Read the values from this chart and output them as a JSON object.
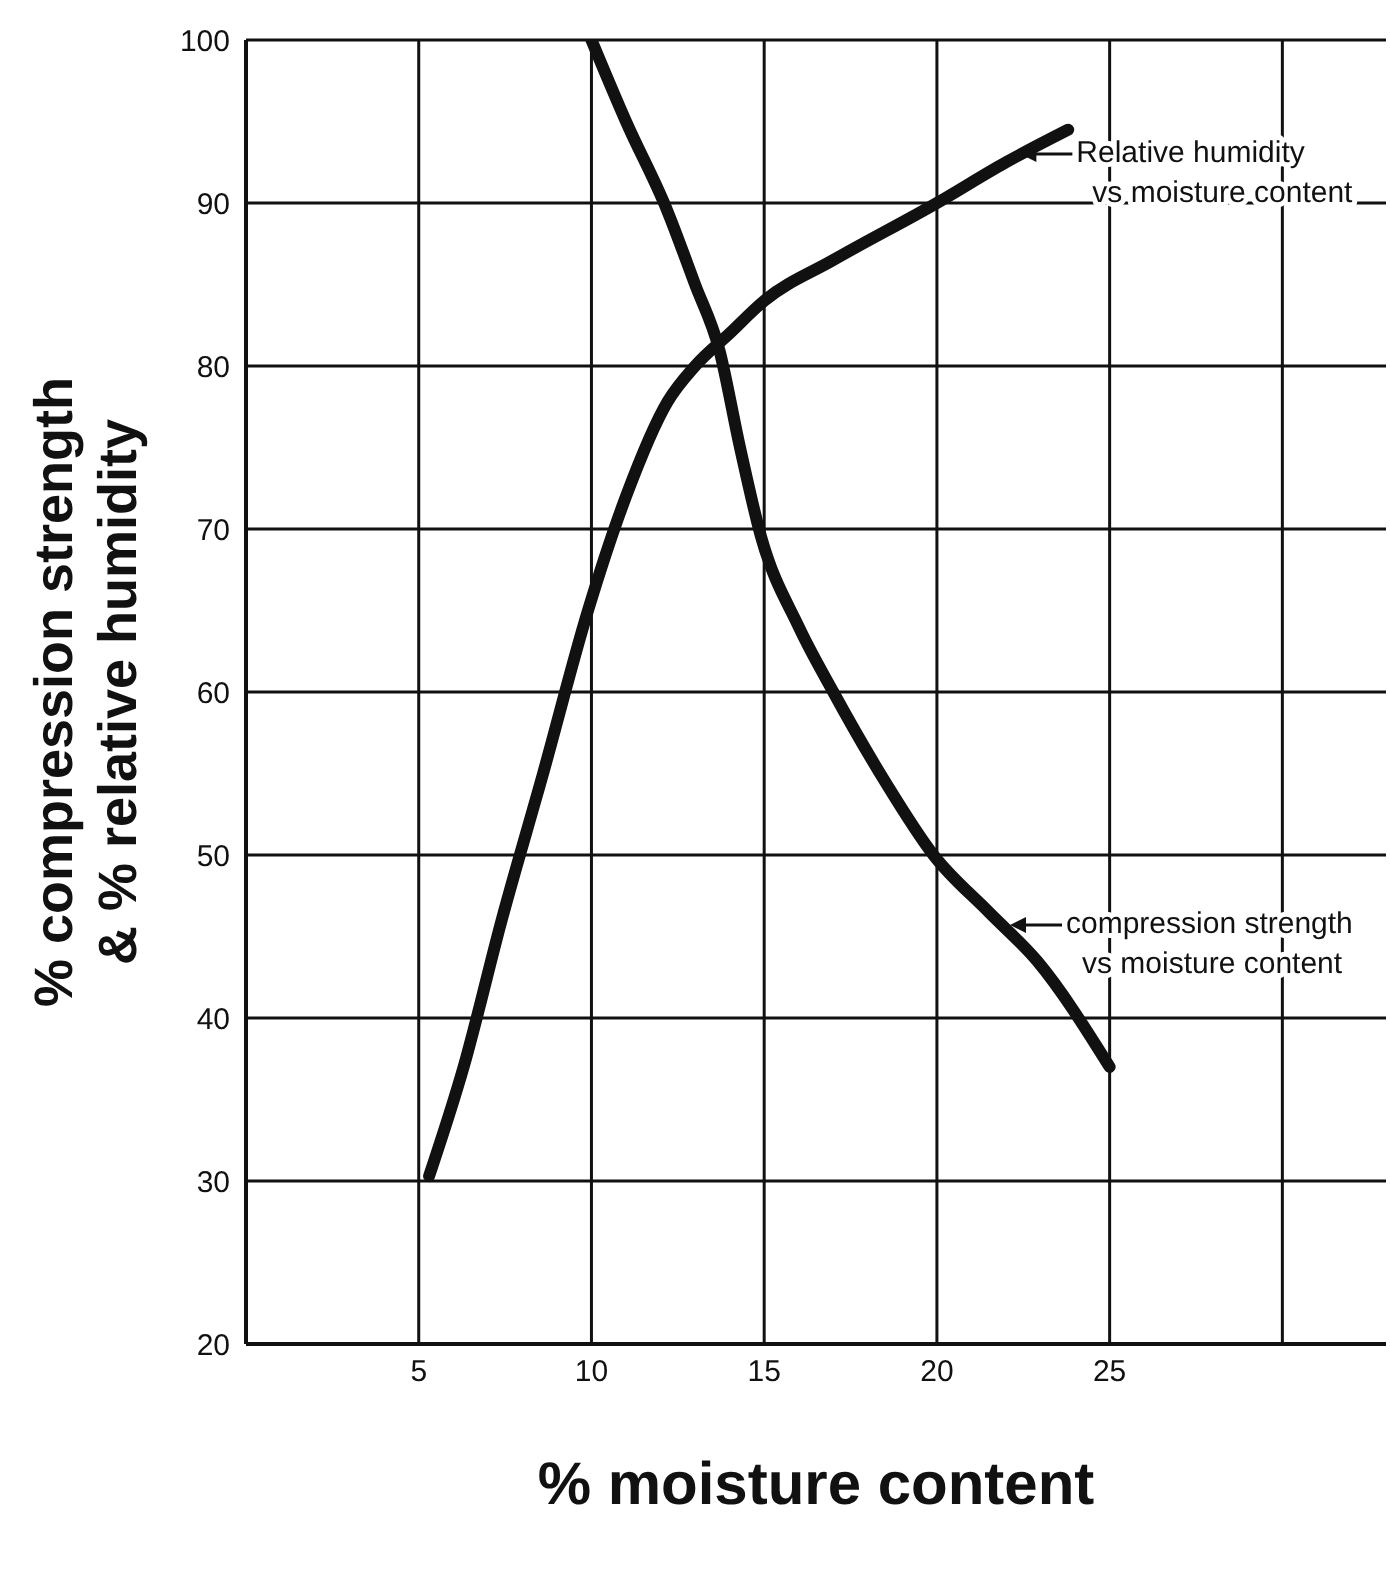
{
  "chart_data": {
    "type": "line",
    "xlabel": "% moisture content",
    "ylabel": "% compression strength\n& % relative humidity",
    "xlim": [
      0,
      33
    ],
    "xticks": [
      5,
      10,
      15,
      20,
      25,
      {
        "value": 30,
        "label": null
      }
    ],
    "ylim": [
      20,
      100
    ],
    "yticks": [
      20,
      30,
      40,
      50,
      60,
      70,
      80,
      90,
      100
    ],
    "grid": true,
    "legend": false,
    "marker": "none",
    "line_style": "solid",
    "series": [
      {
        "color": "#111111",
        "x": [
          5.3,
          6.3,
          7.4,
          8.6,
          9.9,
          11,
          12.2,
          13,
          14,
          15,
          17,
          20,
          22,
          23.8
        ],
        "values": [
          30.3,
          37,
          46,
          55,
          65,
          72,
          77.8,
          80,
          82,
          84,
          86.5,
          90,
          92.5,
          94.5
        ]
      },
      {
        "color": "#111111",
        "x": [
          10,
          11,
          12.2,
          13,
          13.7,
          14.3,
          14.9,
          16,
          17,
          18.5,
          19.9,
          21.5,
          22.9,
          25
        ],
        "values": [
          100,
          95,
          89.5,
          85,
          81,
          75,
          69.6,
          64,
          60,
          54.5,
          50,
          46.5,
          43.5,
          37
        ]
      }
    ],
    "annotations": [
      {
        "text": "Relative humidity\nvs moisture content",
        "x": 22.3,
        "y": 93
      },
      {
        "text": "compression strength\nvs moisture content",
        "x": 22,
        "y": 45.7
      }
    ]
  }
}
